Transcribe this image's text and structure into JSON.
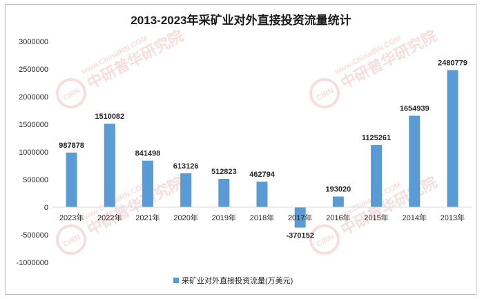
{
  "chart_data": {
    "type": "bar",
    "title": "2013-2023年采矿业对外直接投资流量统计",
    "categories": [
      "2023年",
      "2022年",
      "2021年",
      "2020年",
      "2019年",
      "2018年",
      "2017年",
      "2016年",
      "2015年",
      "2014年",
      "2013年"
    ],
    "series": [
      {
        "name": "采矿业对外直接投资流量(万美元)",
        "values": [
          987878,
          1510082,
          841498,
          613126,
          512823,
          462794,
          -370152,
          193020,
          1125261,
          1654939,
          2480779
        ],
        "labels": [
          "987878",
          "1510082",
          "841498",
          "613126",
          "512823",
          "462794",
          "-370152",
          "193020",
          "1125261",
          "1654939",
          "2480779"
        ],
        "color": "#5b9bd5"
      }
    ],
    "ylim": [
      -1000000,
      3000000
    ],
    "yticks": [
      3000000,
      2500000,
      2000000,
      1500000,
      1000000,
      500000,
      0,
      -500000,
      -1000000
    ],
    "ytick_labels": [
      "3000000",
      "2500000",
      "2000000",
      "1500000",
      "1000000",
      "500000",
      "0",
      "-500000",
      "-1000000"
    ],
    "grid": false,
    "legend_position": "bottom",
    "xlabel": "",
    "ylabel": ""
  },
  "watermark": {
    "logo": "CIRN",
    "brand": "中研普华研究院",
    "url": "www.ChinaIRN.COM",
    "color": "#e8a0a0"
  }
}
